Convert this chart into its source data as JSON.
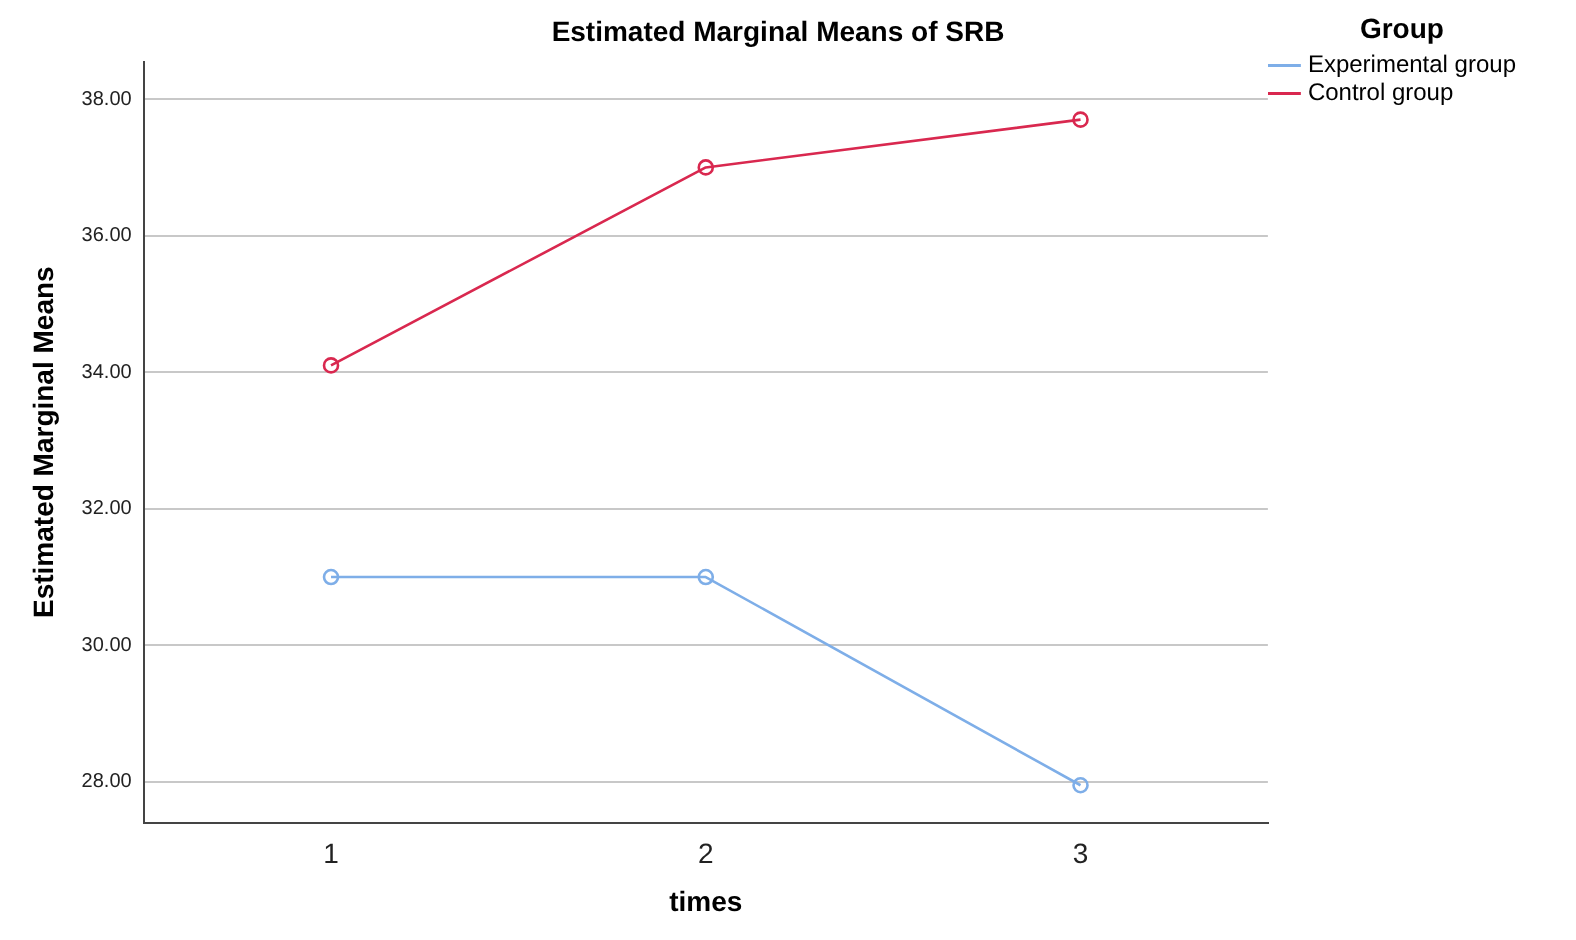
{
  "chart_data": {
    "type": "line",
    "title": "Estimated Marginal Means of SRB",
    "xlabel": "times",
    "ylabel": "Estimated Marginal Means",
    "legend_title": "Group",
    "categories": [
      "1",
      "2",
      "3"
    ],
    "series": [
      {
        "name": "Experimental group",
        "color": "#7eaee8",
        "values": [
          31.0,
          31.0,
          27.95
        ]
      },
      {
        "name": "Control group",
        "color": "#d9284f",
        "values": [
          34.1,
          37.0,
          37.7
        ]
      }
    ],
    "ylim": [
      27.4,
      38.55
    ],
    "yticks": [
      {
        "value": 28,
        "label": "28.00"
      },
      {
        "value": 30,
        "label": "30.00"
      },
      {
        "value": 32,
        "label": "32.00"
      },
      {
        "value": 34,
        "label": "34.00"
      },
      {
        "value": 36,
        "label": "36.00"
      },
      {
        "value": 38,
        "label": "38.00"
      }
    ],
    "grid": "y",
    "legend": "top right",
    "marker": "circle",
    "line_style": "solid"
  }
}
